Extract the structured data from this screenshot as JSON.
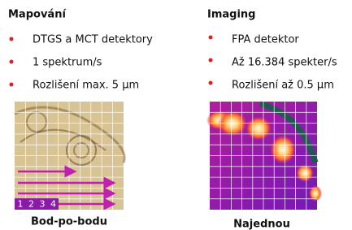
{
  "columns": [
    {
      "title": "Mapování",
      "bullets": [
        "DTGS a MCT detektory",
        "1 spektrum/s",
        "Rozlišení max. 5 µm"
      ],
      "steps": [
        "1",
        "2",
        "3",
        "4"
      ],
      "caption": "Bod-po-bodu"
    },
    {
      "title": "Imaging",
      "bullets": [
        "FPA detektor",
        "Až 16.384 spekter/s",
        "Rozlišení až 0.5 µm"
      ],
      "caption": "Najednou"
    }
  ]
}
